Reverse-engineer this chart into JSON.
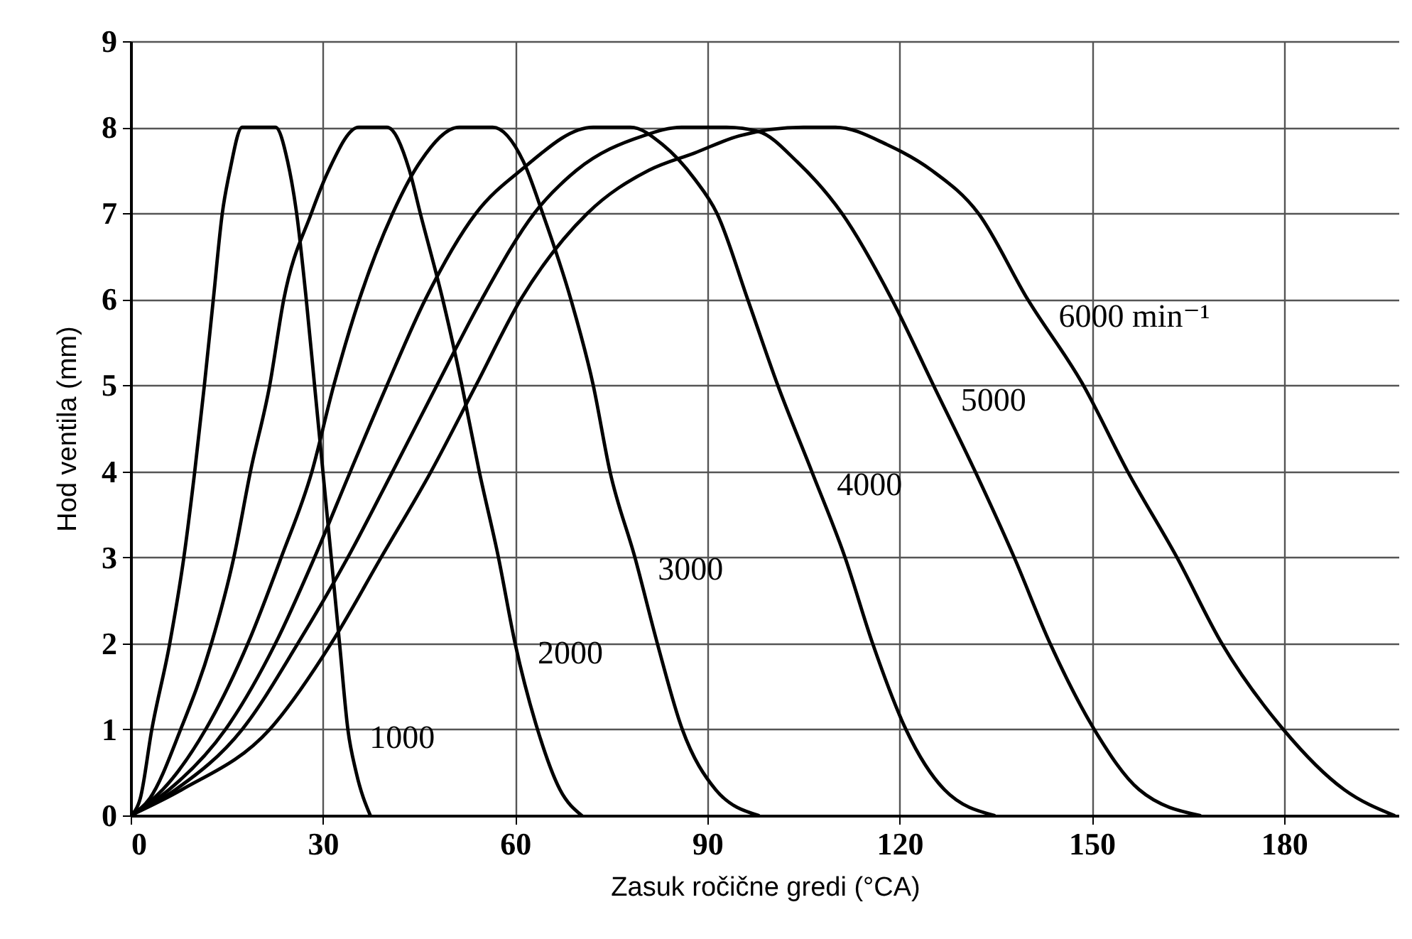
{
  "chart_data": {
    "type": "line",
    "xlabel": "Zasuk ročične gredi (°CA)",
    "ylabel": "Hod ventila (mm)",
    "xlim": [
      0,
      198
    ],
    "ylim": [
      0,
      9
    ],
    "xticks": [
      0,
      30,
      60,
      90,
      120,
      150,
      180
    ],
    "yticks": [
      0,
      1,
      2,
      3,
      4,
      5,
      6,
      7,
      8,
      9
    ],
    "grid": true,
    "legend": false,
    "marker": "none",
    "line_style": "solid",
    "series": [
      {
        "name": "1000",
        "color": "#000000",
        "x": [
          0,
          1.5,
          3.3,
          6.1,
          8.3,
          10,
          11.5,
          12.9,
          14.3,
          15.5,
          17.4,
          20,
          22.6,
          24.5,
          25.9,
          27.4,
          28.7,
          30,
          31.3,
          32.6,
          33.9,
          35.2,
          37.4
        ],
        "values": [
          0,
          0.2,
          1,
          2,
          3,
          4,
          5,
          6,
          7,
          7.5,
          8,
          8,
          8,
          7.6,
          7,
          6,
          5,
          4,
          3,
          2,
          1,
          0.5,
          0
        ]
      },
      {
        "name": "2000",
        "color": "#000000",
        "x": [
          0,
          3,
          7.8,
          12.6,
          16.1,
          18.7,
          21.7,
          23.9,
          28.2,
          30.9,
          35.6,
          40,
          43.5,
          45.2,
          48.7,
          51.7,
          54.4,
          57.4,
          60,
          63.5,
          67,
          70.4
        ],
        "values": [
          0,
          0.2,
          1,
          2,
          3,
          4,
          5,
          6,
          7,
          7.5,
          8,
          8,
          7.5,
          7,
          6,
          5,
          4,
          3,
          2,
          1,
          0.3,
          0
        ]
      },
      {
        "name": "3000",
        "color": "#000000",
        "x": [
          0,
          5,
          11.7,
          18.3,
          23.5,
          28.3,
          31.7,
          35.7,
          40.9,
          45.2,
          51.3,
          56.5,
          61.3,
          64.3,
          68.7,
          72.2,
          74.8,
          78.7,
          82.2,
          86.1,
          91.3,
          98
        ],
        "values": [
          0,
          0.3,
          1,
          2,
          3,
          4,
          5,
          6,
          7,
          7.6,
          8,
          8,
          7.6,
          7,
          6,
          5,
          4,
          3,
          2,
          1,
          0.3,
          0
        ]
      },
      {
        "name": "4000",
        "color": "#000000",
        "x": [
          0,
          6,
          14.8,
          22.6,
          28.7,
          34.3,
          40,
          46,
          53.9,
          60.9,
          72.2,
          78,
          83,
          88,
          91.5,
          96.3,
          101,
          106.3,
          111.5,
          115.8,
          121,
          127,
          134.8
        ],
        "values": [
          0,
          0.3,
          1,
          2,
          3,
          4,
          5,
          6,
          7,
          7.5,
          8,
          8,
          7.8,
          7.4,
          7,
          6,
          5,
          4,
          3,
          2,
          1,
          0.3,
          0
        ]
      },
      {
        "name": "5000",
        "color": "#000000",
        "x": [
          0,
          7,
          17.4,
          26.1,
          33.9,
          40.9,
          47.8,
          54.8,
          63,
          69.6,
          80,
          86,
          93,
          98,
          104,
          111,
          118.8,
          125.3,
          131.8,
          137.9,
          143.5,
          150.4,
          157.4,
          166.9
        ],
        "values": [
          0,
          0.3,
          1,
          2,
          3,
          4,
          5,
          6,
          7,
          7.5,
          7.9,
          8,
          8,
          7.95,
          7.6,
          7,
          6,
          5,
          4,
          3,
          2,
          1,
          0.3,
          0
        ]
      },
      {
        "name": "6000 min⁻¹",
        "color": "#000000",
        "x": [
          0,
          8,
          21.7,
          31.3,
          39.1,
          46.9,
          53.9,
          60.9,
          71.3,
          80.9,
          88,
          95,
          105,
          110,
          118,
          125,
          132.3,
          140,
          148.7,
          155.6,
          163.3,
          170.3,
          179.9,
          189.4,
          197.2
        ],
        "values": [
          0,
          0.3,
          1,
          2,
          3,
          4,
          5,
          6,
          7,
          7.5,
          7.7,
          7.9,
          8,
          8,
          7.8,
          7.5,
          7,
          6,
          5,
          4,
          3,
          2,
          1,
          0.3,
          0
        ]
      }
    ]
  }
}
